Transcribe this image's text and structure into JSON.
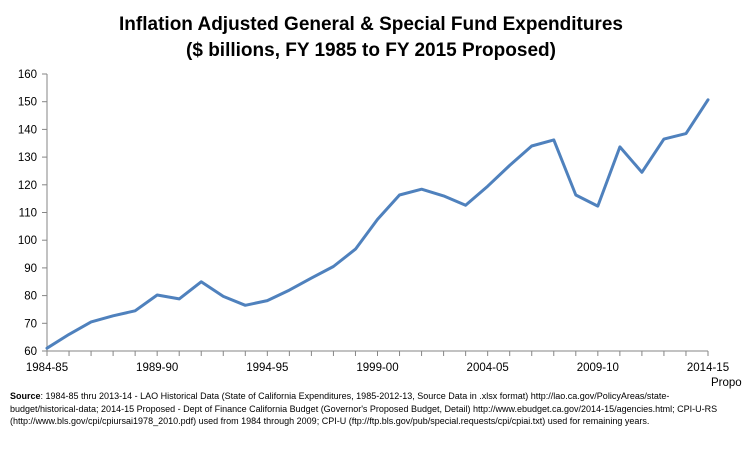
{
  "chart_data": {
    "type": "line",
    "title_line1": "Inflation Adjusted General & Special Fund Expenditures",
    "title_line2": "($ billions, FY 1985 to FY 2015 Proposed)",
    "xlabel": "",
    "ylabel": "",
    "ylim": [
      60,
      160
    ],
    "yticks": [
      60,
      70,
      80,
      90,
      100,
      110,
      120,
      130,
      140,
      150,
      160
    ],
    "grid": false,
    "x_tick_labels": [
      {
        "index": 0,
        "label": "1984-85",
        "sublabel": ""
      },
      {
        "index": 5,
        "label": "1989-90",
        "sublabel": ""
      },
      {
        "index": 10,
        "label": "1994-95",
        "sublabel": ""
      },
      {
        "index": 15,
        "label": "1999-00",
        "sublabel": ""
      },
      {
        "index": 20,
        "label": "2004-05",
        "sublabel": ""
      },
      {
        "index": 25,
        "label": "2009-10",
        "sublabel": ""
      },
      {
        "index": 30,
        "label": "2014-15",
        "sublabel": "Proposed"
      }
    ],
    "categories": [
      "1984-85",
      "1985-86",
      "1986-87",
      "1987-88",
      "1988-89",
      "1989-90",
      "1990-91",
      "1991-92",
      "1992-93",
      "1993-94",
      "1994-95",
      "1995-96",
      "1996-97",
      "1997-98",
      "1998-99",
      "1999-00",
      "2000-01",
      "2001-02",
      "2002-03",
      "2003-04",
      "2004-05",
      "2005-06",
      "2006-07",
      "2007-08",
      "2008-09",
      "2009-10",
      "2010-11",
      "2011-12",
      "2012-13",
      "2013-14",
      "2014-15"
    ],
    "series": [
      {
        "color": "#4f81bd",
        "values": [
          61,
          66,
          70.5,
          72.7,
          74.5,
          80.2,
          78.8,
          85,
          79.7,
          76.5,
          78.2,
          82,
          86.3,
          90.5,
          96.8,
          107.5,
          116.3,
          118.4,
          116,
          112.6,
          119.5,
          127,
          134,
          136.2,
          116.3,
          112.3,
          133.7,
          124.5,
          136.5,
          138.5,
          150.7
        ]
      }
    ]
  },
  "source": {
    "label": "Source",
    "text": ": 1984-85 thru 2013-14 - LAO Historical Data (State of California Expenditures, 1985-2012-13, Source Data in .xlsx format) http://lao.ca.gov/PolicyAreas/state-budget/historical-data; 2014-15 Proposed - Dept of Finance California Budget (Governor's Proposed Budget, Detail) http://www.ebudget.ca.gov/2014-15/agencies.html; CPI-U-RS (http://www.bls.gov/cpi/cpiursai1978_2010.pdf) used from 1984 through 2009; CPI-U (ftp://ftp.bls.gov/pub/special.requests/cpi/cpiai.txt) used for remaining years."
  }
}
